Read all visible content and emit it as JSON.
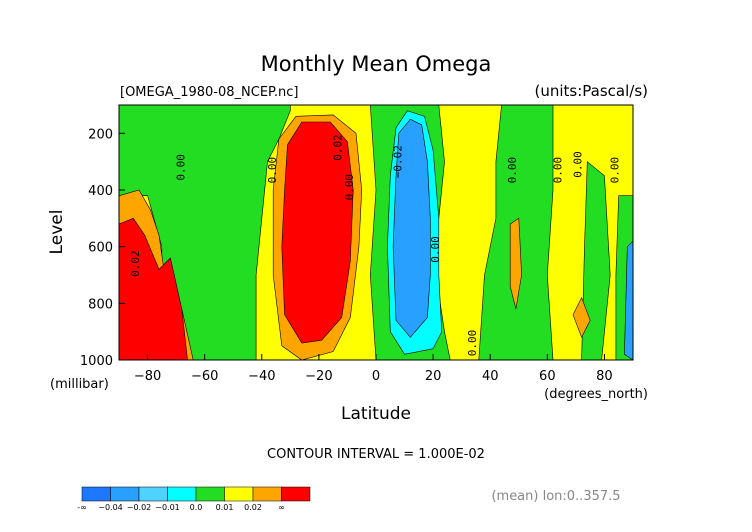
{
  "chart_data": {
    "type": "heatmap",
    "title": "Monthly Mean Omega",
    "file_label": "[OMEGA_1980-08_NCEP.nc]",
    "units_label": "(units:Pascal/s)",
    "xlabel": "Latitude",
    "xunit": "(degrees_north)",
    "ylabel": "Level",
    "yunit": "(millibar)",
    "xlim": [
      -90,
      90
    ],
    "ylim": [
      1000,
      100
    ],
    "x_ticks": [
      -80,
      -60,
      -40,
      -20,
      0,
      20,
      40,
      60,
      80
    ],
    "y_ticks": [
      200,
      400,
      600,
      800,
      1000
    ],
    "contour_interval_label": "CONTOUR INTERVAL = 1.000E-02",
    "mean_label": "(mean) lon:0..357.5",
    "colorbar": {
      "colors": [
        "#1e78ff",
        "#28a0ff",
        "#50d2ff",
        "#00ffff",
        "#22dd22",
        "#ffff00",
        "#ffa500",
        "#ff0000"
      ],
      "labels": [
        "-∞",
        "−0.04",
        "−0.02",
        "−0.01",
        "0.0",
        "0.01",
        "0.02",
        "∞"
      ]
    },
    "contour_labels": [
      {
        "text": "0.00",
        "lat": -67,
        "lev": 320
      },
      {
        "text": "0.00",
        "lat": -35,
        "lev": 330
      },
      {
        "text": "0.02",
        "lat": -12,
        "lev": 250
      },
      {
        "text": "0.00",
        "lat": -8,
        "lev": 390
      },
      {
        "text": "−0.02",
        "lat": 9,
        "lev": 300
      },
      {
        "text": "0.00",
        "lat": 22,
        "lev": 610
      },
      {
        "text": "0.00",
        "lat": 35,
        "lev": 940
      },
      {
        "text": "0.00",
        "lat": 49,
        "lev": 330
      },
      {
        "text": "0.00",
        "lat": 65,
        "lev": 330
      },
      {
        "text": "0.00",
        "lat": 72,
        "lev": 310
      },
      {
        "text": "0.00",
        "lat": 85,
        "lev": 330
      },
      {
        "text": "0.02",
        "lat": -83,
        "lev": 660
      }
    ],
    "regions": [
      {
        "name": "cyan",
        "value": -0.015,
        "color": "#00ffff",
        "pts": [
          [
            -74,
            440
          ],
          [
            -64,
            400
          ],
          [
            -58,
            420
          ],
          [
            -52,
            390
          ],
          [
            -44,
            370
          ],
          [
            -42,
            560
          ],
          [
            -45,
            780
          ],
          [
            -52,
            980
          ],
          [
            -60,
            1000
          ],
          [
            -66,
            980
          ],
          [
            -69,
            760
          ],
          [
            -75,
            520
          ]
        ]
      },
      {
        "name": "blue",
        "value": -0.025,
        "color": "#28a0ff",
        "pts": [
          [
            -65,
            760
          ],
          [
            -62,
            720
          ],
          [
            -59,
            800
          ],
          [
            -60,
            950
          ],
          [
            -63,
            1000
          ],
          [
            -66,
            980
          ]
        ]
      },
      {
        "name": "orange",
        "value": 0.015,
        "color": "#ffa500",
        "pts": [
          [
            -34,
            220
          ],
          [
            -28,
            140
          ],
          [
            -15,
            135
          ],
          [
            -7,
            200
          ],
          [
            -5,
            400
          ],
          [
            -6,
            600
          ],
          [
            -9,
            850
          ],
          [
            -15,
            970
          ],
          [
            -26,
            1000
          ],
          [
            -33,
            950
          ],
          [
            -36,
            700
          ],
          [
            -36,
            400
          ]
        ]
      },
      {
        "name": "red",
        "value": 0.025,
        "color": "#ff0000",
        "pts": [
          [
            -31,
            240
          ],
          [
            -26,
            160
          ],
          [
            -16,
            160
          ],
          [
            -10,
            230
          ],
          [
            -8,
            400
          ],
          [
            -9,
            650
          ],
          [
            -12,
            850
          ],
          [
            -19,
            930
          ],
          [
            -26,
            940
          ],
          [
            -32,
            840
          ],
          [
            -33,
            600
          ],
          [
            -32,
            400
          ]
        ]
      },
      {
        "name": "green-south",
        "value": -0.005,
        "color": "#22dd22",
        "pts": [
          [
            -90,
            100
          ],
          [
            -30,
            100
          ],
          [
            -30,
            120
          ],
          [
            -34,
            220
          ],
          [
            -38,
            300
          ],
          [
            -40,
            500
          ],
          [
            -42,
            700
          ],
          [
            -42,
            1000
          ],
          [
            -75,
            1000
          ],
          [
            -75,
            600
          ],
          [
            -80,
            420
          ],
          [
            -90,
            420
          ]
        ]
      },
      {
        "name": "orange-south",
        "value": 0.015,
        "color": "#ffa500",
        "pts": [
          [
            -90,
            420
          ],
          [
            -83,
            400
          ],
          [
            -79,
            470
          ],
          [
            -76,
            560
          ],
          [
            -74,
            700
          ],
          [
            -68,
            820
          ],
          [
            -64,
            1000
          ],
          [
            -90,
            1000
          ]
        ]
      },
      {
        "name": "red-south",
        "value": 0.025,
        "color": "#ff0000",
        "pts": [
          [
            -90,
            520
          ],
          [
            -85,
            500
          ],
          [
            -81,
            560
          ],
          [
            -76,
            680
          ],
          [
            -72,
            640
          ],
          [
            -68,
            820
          ],
          [
            -66,
            1000
          ],
          [
            -90,
            1000
          ]
        ]
      },
      {
        "name": "green-mid",
        "value": -0.005,
        "color": "#22dd22",
        "pts": [
          [
            -2,
            100
          ],
          [
            22,
            100
          ],
          [
            24,
            300
          ],
          [
            22,
            500
          ],
          [
            21,
            700
          ],
          [
            24,
            900
          ],
          [
            26,
            1000
          ],
          [
            0,
            1000
          ],
          [
            -2,
            700
          ],
          [
            0,
            400
          ]
        ]
      },
      {
        "name": "cyan-mid",
        "value": -0.015,
        "color": "#00ffff",
        "pts": [
          [
            7,
            180
          ],
          [
            11,
            120
          ],
          [
            17,
            140
          ],
          [
            20,
            260
          ],
          [
            22,
            500
          ],
          [
            22,
            700
          ],
          [
            23,
            900
          ],
          [
            20,
            960
          ],
          [
            10,
            980
          ],
          [
            5,
            900
          ],
          [
            4,
            600
          ],
          [
            5,
            350
          ]
        ]
      },
      {
        "name": "blue-mid",
        "value": -0.025,
        "color": "#28a0ff",
        "pts": [
          [
            8,
            200
          ],
          [
            12,
            150
          ],
          [
            16,
            170
          ],
          [
            18,
            300
          ],
          [
            19,
            500
          ],
          [
            19,
            700
          ],
          [
            18,
            850
          ],
          [
            12,
            920
          ],
          [
            7,
            860
          ],
          [
            6,
            600
          ],
          [
            7,
            350
          ]
        ]
      },
      {
        "name": "green-north1",
        "value": -0.005,
        "color": "#22dd22",
        "pts": [
          [
            44,
            100
          ],
          [
            62,
            100
          ],
          [
            62,
            400
          ],
          [
            60,
            700
          ],
          [
            62,
            1000
          ],
          [
            36,
            1000
          ],
          [
            38,
            700
          ],
          [
            42,
            500
          ],
          [
            42,
            300
          ]
        ]
      },
      {
        "name": "green-north2",
        "value": -0.005,
        "color": "#22dd22",
        "pts": [
          [
            74,
            300
          ],
          [
            80,
            350
          ],
          [
            82,
            700
          ],
          [
            79,
            1000
          ],
          [
            72,
            1000
          ],
          [
            73,
            600
          ]
        ]
      },
      {
        "name": "green-north3",
        "value": -0.005,
        "color": "#22dd22",
        "pts": [
          [
            85,
            420
          ],
          [
            90,
            420
          ],
          [
            90,
            1000
          ],
          [
            84,
            1000
          ],
          [
            84,
            700
          ]
        ]
      },
      {
        "name": "blue-north",
        "value": -0.025,
        "color": "#28a0ff",
        "pts": [
          [
            88,
            600
          ],
          [
            90,
            580
          ],
          [
            90,
            1000
          ],
          [
            87,
            980
          ]
        ]
      },
      {
        "name": "orange-north",
        "value": 0.015,
        "color": "#ffa500",
        "pts": [
          [
            47,
            520
          ],
          [
            50,
            500
          ],
          [
            51,
            700
          ],
          [
            49,
            820
          ],
          [
            47,
            740
          ]
        ]
      },
      {
        "name": "orange-north2",
        "value": 0.015,
        "color": "#ffa500",
        "pts": [
          [
            69,
            840
          ],
          [
            72,
            780
          ],
          [
            75,
            860
          ],
          [
            72,
            920
          ]
        ]
      }
    ]
  }
}
